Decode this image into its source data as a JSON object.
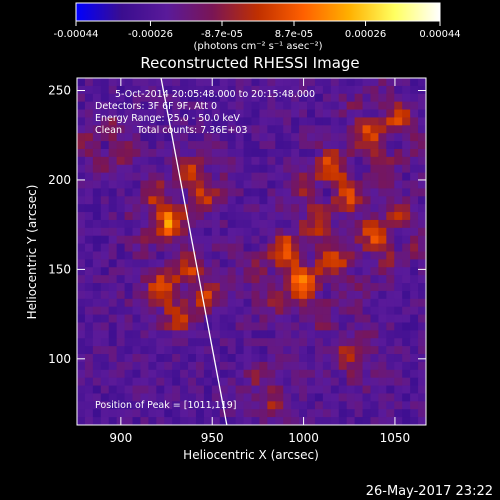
{
  "chart_data": {
    "type": "heatmap",
    "title": "Reconstructed RHESSI Image",
    "xlabel": "Heliocentric X (arcsec)",
    "ylabel": "Heliocentric Y (arcsec)",
    "xlim": [
      876,
      1067
    ],
    "ylim": [
      63,
      257
    ],
    "x_ticks": [
      900,
      950,
      1000,
      1050
    ],
    "y_ticks": [
      100,
      150,
      200,
      250
    ],
    "colorbar": {
      "min": -0.00044,
      "max": 0.00044,
      "tick_values": [
        -0.00044,
        -0.00026,
        -8.7e-05,
        8.7e-05,
        0.00026,
        0.00044
      ],
      "tick_labels": [
        "-0.00044",
        "-0.00026",
        "-8.7e-05",
        "8.7e-05",
        "0.00026",
        "0.00044"
      ],
      "unit_label": "(photons cm⁻² s⁻¹ asec⁻²)",
      "colors": [
        "#0000ff",
        "#3a0d8f",
        "#5a1a9a",
        "#7a1555",
        "#c03000",
        "#ff6000",
        "#ffb000",
        "#ffff60",
        "#ffffff"
      ]
    },
    "annotations": {
      "date_range": "5-Oct-2014 20:05:48.000 to 20:15:48.000",
      "detectors": "Detectors: 3F 6F 9F, Att 0",
      "energy": "Energy Range: 25.0 - 50.0 keV",
      "clean": "Clean     Total counts: 7.36E+03",
      "peak": "Position of Peak = [1011,119]"
    },
    "limb_line": {
      "x": [
        922,
        958
      ],
      "y": [
        257,
        63
      ]
    },
    "grid": false
  },
  "footer_date": "26-May-2017 23:22"
}
